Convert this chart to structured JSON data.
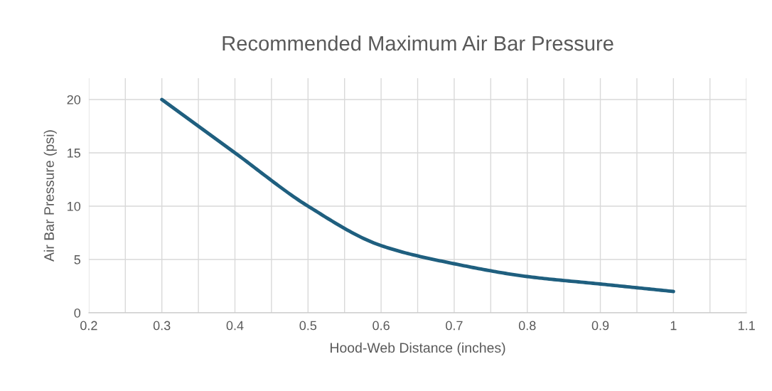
{
  "chart_data": {
    "type": "line",
    "title": "Recommended Maximum Air Bar Pressure",
    "xlabel": "Hood-Web Distance (inches)",
    "ylabel": "Air Bar Pressure (psi)",
    "x": [
      0.3,
      0.4,
      0.5,
      0.6,
      0.7,
      0.8,
      0.9,
      1.0
    ],
    "series": [
      {
        "color": "#1f5f7f",
        "values": [
          20,
          15,
          10,
          6.3,
          4.6,
          3.4,
          2.7,
          2.0
        ]
      }
    ],
    "xlim": [
      0.2,
      1.1
    ],
    "xticks": [
      0.2,
      {
        "value": 0.25,
        "label": null
      },
      0.3,
      {
        "value": 0.35,
        "label": null
      },
      0.4,
      {
        "value": 0.45,
        "label": null
      },
      0.5,
      {
        "value": 0.55,
        "label": null
      },
      0.6,
      {
        "value": 0.65,
        "label": null
      },
      0.7,
      {
        "value": 0.75,
        "label": null
      },
      0.8,
      {
        "value": 0.85,
        "label": null
      },
      0.9,
      {
        "value": 0.95,
        "label": null
      },
      {
        "value": 1.0,
        "label": "1"
      },
      {
        "value": 1.05,
        "label": null
      },
      1.1
    ],
    "ylim": [
      0,
      22
    ],
    "yticks": [
      0,
      5,
      10,
      15,
      20
    ],
    "grid": true,
    "marker": "none",
    "line_style": "solid"
  }
}
